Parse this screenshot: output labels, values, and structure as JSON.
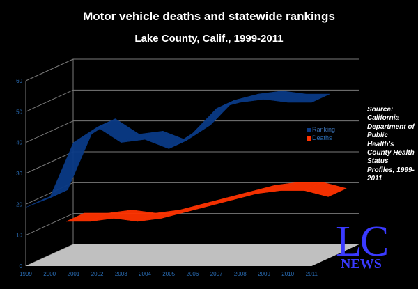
{
  "title": "Motor vehicle deaths and statewide rankings",
  "subtitle": "Lake County, Calif., 1999-2011",
  "source_note": "Source: California Department of Public Health's County Health Status Profiles, 1999-2011",
  "logo": {
    "top": "LC",
    "bottom": "NEWS"
  },
  "colors": {
    "ranking": "#0a3a86",
    "deaths": "#ff3300",
    "floor": "#c0c0c0",
    "axis_text": "#2a6db5",
    "grid": "#7a7a7a"
  },
  "chart_data": {
    "type": "area",
    "title": "Motor vehicle deaths and statewide rankings",
    "subtitle": "Lake County, Calif., 1999-2011",
    "categories": [
      "1999",
      "2000",
      "2001",
      "2002",
      "2003",
      "2004",
      "2005",
      "2006",
      "2007",
      "2008",
      "2009",
      "2010",
      "2011"
    ],
    "y_ticks": [
      "0",
      "10",
      "20",
      "30",
      "40",
      "50",
      "60"
    ],
    "ylim": [
      0,
      60
    ],
    "grid": true,
    "three_d": true,
    "legend_position": "right",
    "series": [
      {
        "name": "Ranking",
        "values": [
          19,
          22,
          40,
          45,
          40,
          41,
          38,
          43,
          51,
          53,
          54,
          53,
          53
        ]
      },
      {
        "name": "Deaths",
        "values": [
          null,
          12,
          12,
          13,
          12,
          13,
          15,
          17,
          19,
          21,
          22,
          22,
          20
        ]
      }
    ]
  }
}
